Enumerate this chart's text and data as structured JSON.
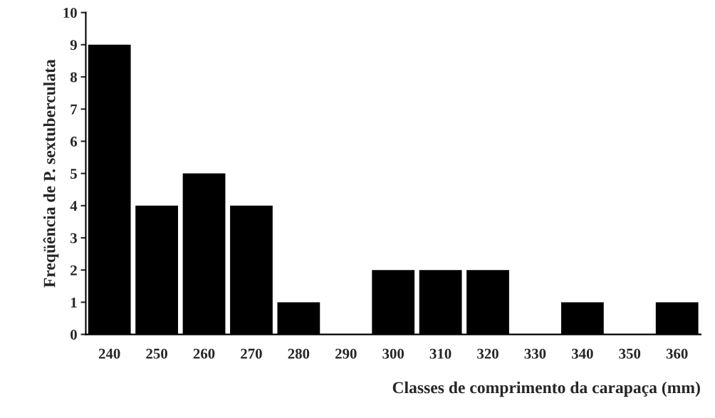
{
  "chart_data": {
    "type": "bar",
    "xlabel": "Classes de comprimento da carapaça (mm)",
    "ylabel": "Freqüência de P. sextuberculata",
    "categories": [
      "240",
      "250",
      "260",
      "270",
      "280",
      "290",
      "300",
      "310",
      "320",
      "330",
      "340",
      "350",
      "360"
    ],
    "values": [
      9,
      4,
      5,
      4,
      1,
      0,
      2,
      2,
      2,
      0,
      1,
      0,
      1
    ],
    "color": "#000000",
    "ylim": [
      0,
      10
    ],
    "yticks": [
      0,
      1,
      2,
      3,
      4,
      5,
      6,
      7,
      8,
      9,
      10
    ],
    "grid": false,
    "legend": false
  }
}
